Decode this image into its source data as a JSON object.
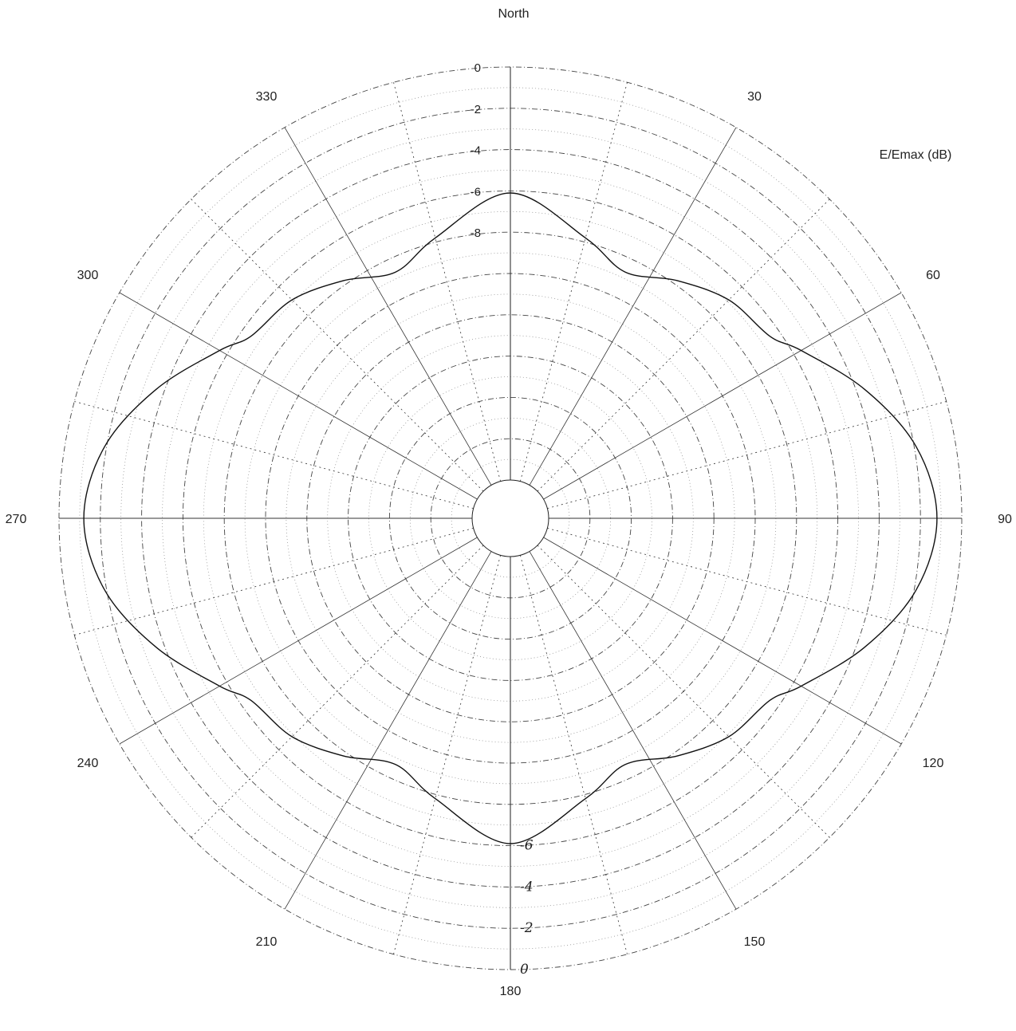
{
  "chart_data": {
    "type": "polar-line",
    "top_label": "North",
    "unit_label": "E/Emax (dB)",
    "angle_labels": [
      {
        "deg": 30,
        "text": "30"
      },
      {
        "deg": 60,
        "text": "60"
      },
      {
        "deg": 90,
        "text": "90"
      },
      {
        "deg": 120,
        "text": "120"
      },
      {
        "deg": 150,
        "text": "150"
      },
      {
        "deg": 180,
        "text": "180"
      },
      {
        "deg": 210,
        "text": "210"
      },
      {
        "deg": 240,
        "text": "240"
      },
      {
        "deg": 270,
        "text": "270"
      },
      {
        "deg": 300,
        "text": "300"
      },
      {
        "deg": 330,
        "text": "330"
      }
    ],
    "radial_ticks": [
      {
        "db": 0,
        "text": "0"
      },
      {
        "db": -2,
        "text": "-2"
      },
      {
        "db": -4,
        "text": "-4"
      },
      {
        "db": -6,
        "text": "-6"
      },
      {
        "db": -8,
        "text": "-8"
      }
    ],
    "handwritten_ticks": [
      {
        "db": -6,
        "text": "-6"
      },
      {
        "db": -4,
        "text": "-4"
      },
      {
        "db": -2,
        "text": "-2"
      },
      {
        "db": 0,
        "text": "0"
      }
    ],
    "rlim": [
      -20,
      0
    ],
    "ring_step_db": 1,
    "series": [
      {
        "theta_deg": [
          0,
          15,
          25,
          35,
          45,
          55,
          60,
          70,
          80,
          90,
          100,
          110,
          120,
          125,
          135,
          145,
          155,
          165,
          180,
          195,
          205,
          215,
          225,
          235,
          240,
          250,
          260,
          270,
          280,
          290,
          300,
          305,
          315,
          325,
          335,
          345
        ],
        "r_db": [
          -6.1,
          -7.8,
          -8.7,
          -7.8,
          -6.9,
          -6.5,
          -5.6,
          -3.6,
          -1.9,
          -1.2,
          -1.9,
          -3.6,
          -5.6,
          -6.5,
          -6.9,
          -7.8,
          -8.7,
          -7.8,
          -6.1,
          -7.8,
          -8.7,
          -7.8,
          -6.9,
          -6.5,
          -5.6,
          -3.6,
          -1.9,
          -1.2,
          -1.9,
          -3.6,
          -5.6,
          -6.5,
          -6.9,
          -7.8,
          -8.7,
          -7.8
        ]
      }
    ],
    "grid": true
  }
}
